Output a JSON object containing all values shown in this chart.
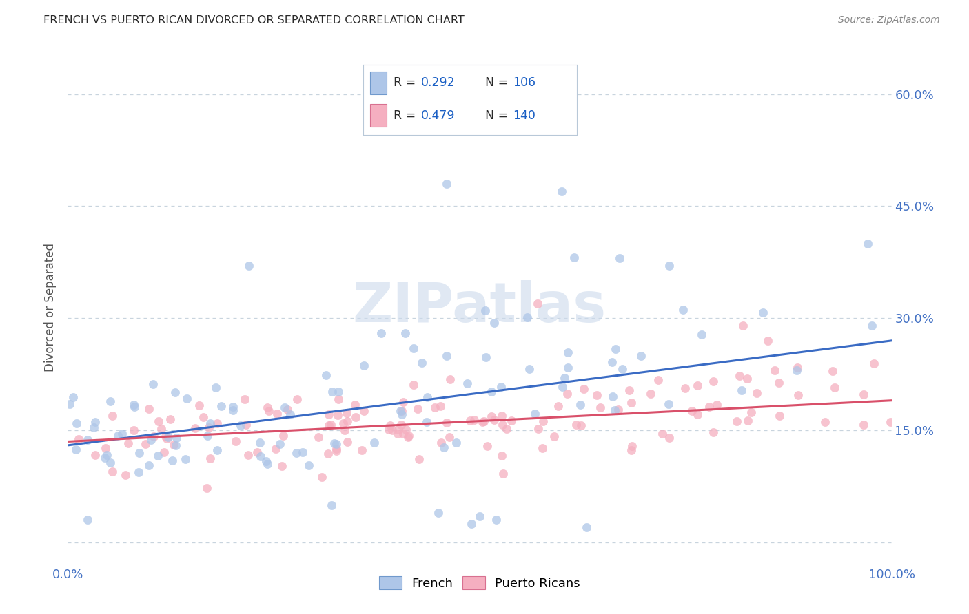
{
  "title": "FRENCH VS PUERTO RICAN DIVORCED OR SEPARATED CORRELATION CHART",
  "source": "Source: ZipAtlas.com",
  "ylabel": "Divorced or Separated",
  "yticks": [
    0.0,
    0.15,
    0.3,
    0.45,
    0.6
  ],
  "ytick_labels": [
    "",
    "15.0%",
    "30.0%",
    "45.0%",
    "60.0%"
  ],
  "xlim": [
    0.0,
    1.0
  ],
  "ylim": [
    -0.03,
    0.66
  ],
  "french_R": 0.292,
  "french_N": 106,
  "pr_R": 0.479,
  "pr_N": 140,
  "french_color": "#aec6e8",
  "pr_color": "#f5afc0",
  "french_line_color": "#3a6bc4",
  "pr_line_color": "#d9506a",
  "watermark_color": "#ccdaec",
  "background_color": "#ffffff",
  "grid_color": "#c8d4de",
  "title_color": "#2a2a2a",
  "source_color": "#888888",
  "axis_label_color": "#4472c4",
  "french_intercept": 0.13,
  "french_slope": 0.14,
  "pr_intercept": 0.135,
  "pr_slope": 0.055
}
